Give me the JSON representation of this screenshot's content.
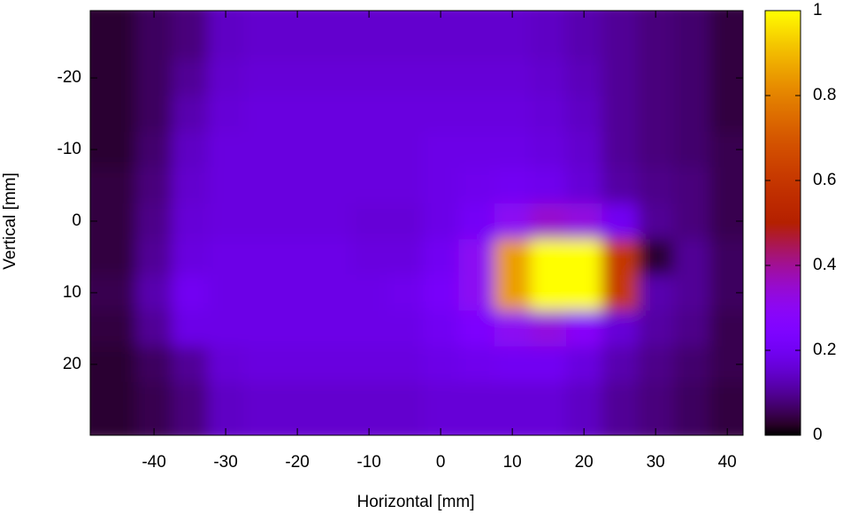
{
  "chart_data": {
    "type": "heatmap",
    "xlabel": "Horizontal [mm]",
    "ylabel": "Vertical [mm]",
    "x": [
      -45,
      -40,
      -35,
      -30,
      -25,
      -20,
      -15,
      -10,
      -5,
      0,
      5,
      10,
      15,
      20,
      25,
      30,
      35,
      40
    ],
    "y": [
      -25,
      -20,
      -15,
      -10,
      -5,
      0,
      5,
      10,
      15,
      20,
      25
    ],
    "z": [
      [
        0.03,
        0.06,
        0.08,
        0.14,
        0.15,
        0.15,
        0.15,
        0.15,
        0.15,
        0.15,
        0.15,
        0.15,
        0.14,
        0.12,
        0.1,
        0.08,
        0.07,
        0.04
      ],
      [
        0.03,
        0.06,
        0.1,
        0.15,
        0.16,
        0.16,
        0.16,
        0.16,
        0.16,
        0.16,
        0.16,
        0.16,
        0.15,
        0.13,
        0.1,
        0.08,
        0.07,
        0.04
      ],
      [
        0.03,
        0.06,
        0.12,
        0.16,
        0.17,
        0.17,
        0.17,
        0.17,
        0.17,
        0.17,
        0.17,
        0.17,
        0.16,
        0.14,
        0.1,
        0.08,
        0.07,
        0.04
      ],
      [
        0.03,
        0.07,
        0.14,
        0.17,
        0.17,
        0.17,
        0.17,
        0.17,
        0.17,
        0.18,
        0.18,
        0.18,
        0.17,
        0.15,
        0.1,
        0.08,
        0.07,
        0.05
      ],
      [
        0.04,
        0.08,
        0.15,
        0.17,
        0.17,
        0.17,
        0.17,
        0.17,
        0.17,
        0.18,
        0.19,
        0.2,
        0.19,
        0.16,
        0.11,
        0.09,
        0.08,
        0.05
      ],
      [
        0.04,
        0.09,
        0.16,
        0.17,
        0.17,
        0.17,
        0.17,
        0.16,
        0.16,
        0.18,
        0.21,
        0.3,
        0.35,
        0.33,
        0.2,
        0.1,
        0.08,
        0.05
      ],
      [
        0.04,
        0.1,
        0.17,
        0.18,
        0.18,
        0.18,
        0.18,
        0.17,
        0.17,
        0.2,
        0.3,
        0.85,
        1,
        1,
        0.6,
        0.03,
        0.1,
        0.06
      ],
      [
        0.05,
        0.12,
        0.2,
        0.18,
        0.18,
        0.18,
        0.18,
        0.18,
        0.19,
        0.22,
        0.3,
        0.85,
        1,
        1,
        0.6,
        0.12,
        0.1,
        0.06
      ],
      [
        0.04,
        0.1,
        0.18,
        0.18,
        0.18,
        0.18,
        0.18,
        0.18,
        0.18,
        0.2,
        0.24,
        0.3,
        0.33,
        0.28,
        0.16,
        0.11,
        0.09,
        0.05
      ],
      [
        0.03,
        0.06,
        0.1,
        0.16,
        0.17,
        0.17,
        0.17,
        0.17,
        0.17,
        0.18,
        0.19,
        0.2,
        0.2,
        0.17,
        0.12,
        0.09,
        0.07,
        0.05
      ],
      [
        0.03,
        0.05,
        0.08,
        0.14,
        0.15,
        0.15,
        0.15,
        0.15,
        0.15,
        0.16,
        0.16,
        0.16,
        0.16,
        0.14,
        0.1,
        0.08,
        0.06,
        0.04
      ]
    ],
    "xlim": [
      -48.9,
      42.2
    ],
    "xticks": [
      -40,
      -30,
      -20,
      -10,
      0,
      10,
      20,
      30,
      40
    ],
    "ylim": [
      -29.4,
      29.9
    ],
    "yticks": [
      -20,
      -10,
      0,
      10,
      20
    ],
    "cblim": [
      0,
      1
    ],
    "cbticks": [
      0,
      0.2,
      0.4,
      0.6,
      0.8,
      1
    ],
    "palette": [
      7,
      5,
      15
    ]
  }
}
